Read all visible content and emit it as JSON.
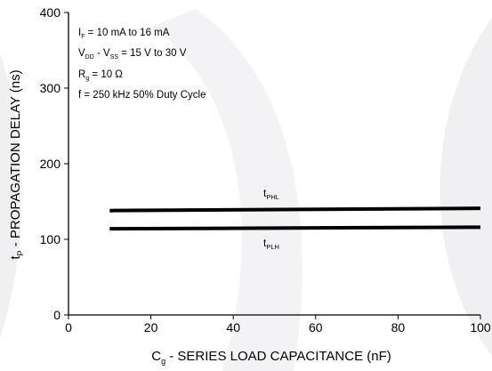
{
  "chart_data": {
    "type": "line",
    "xlabel_main": "C",
    "xlabel_sub": "g",
    "xlabel_rest": " - SERIES LOAD CAPACITANCE (nF)",
    "ylabel_main": "t",
    "ylabel_sub": "P",
    "ylabel_rest": " - PROPAGATION DELAY (ns)",
    "xlim": [
      0,
      100
    ],
    "ylim": [
      0,
      400
    ],
    "x_ticks": [
      0,
      20,
      40,
      60,
      80,
      100
    ],
    "y_ticks": [
      0,
      100,
      200,
      300,
      400
    ],
    "grid": false,
    "series": [
      {
        "name_main": "t",
        "name_sub": "PHL",
        "x": [
          10,
          100
        ],
        "y": [
          138,
          141
        ]
      },
      {
        "name_main": "t",
        "name_sub": "PLH",
        "x": [
          10,
          100
        ],
        "y": [
          114,
          116
        ]
      }
    ],
    "conditions": [
      {
        "main": "I",
        "sub": "F",
        "rest": " = 10 mA to 16 mA"
      },
      {
        "main": "V",
        "sub": "DD",
        "mid": " - V",
        "sub2": "SS",
        "rest": " = 15 V to 30 V"
      },
      {
        "main": "R",
        "sub": "g",
        "rest": " = 10 Ω"
      },
      {
        "main": "f = 250 kHz 50% Duty Cycle"
      }
    ],
    "colors": {
      "line": "#000000",
      "axis": "#000000",
      "watermark": "#f0f0f2"
    }
  }
}
